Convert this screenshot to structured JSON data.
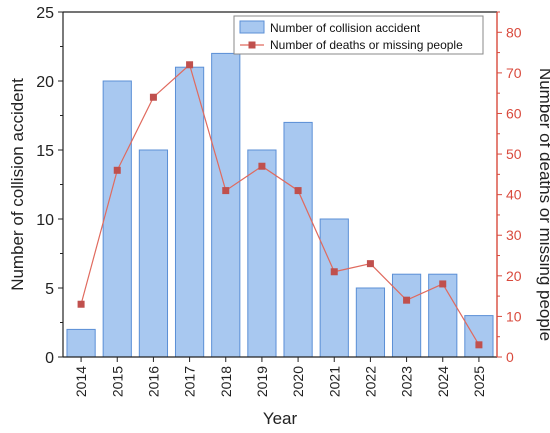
{
  "chart_data": {
    "type": "bar",
    "categories": [
      "2014",
      "2015",
      "2016",
      "2017",
      "2018",
      "2019",
      "2020",
      "2021",
      "2022",
      "2023",
      "2024",
      "2025"
    ],
    "series": [
      {
        "name": "Number of collision accident",
        "type": "bar",
        "axis": "left",
        "values": [
          2,
          20,
          15,
          21,
          22,
          15,
          17,
          10,
          5,
          6,
          6,
          3
        ]
      },
      {
        "name": "Number of deaths or missing people",
        "type": "line",
        "axis": "right",
        "values": [
          13,
          46,
          64,
          72,
          41,
          47,
          41,
          21,
          23,
          14,
          18,
          3
        ]
      }
    ],
    "xlabel": "Year",
    "ylabel": "Number of collision accident",
    "y2label": "Number of deaths or missing people",
    "ylim": [
      0,
      25
    ],
    "y2lim": [
      0,
      85
    ],
    "yticks": [
      "0",
      "5",
      "10",
      "15",
      "20",
      "25"
    ],
    "y2ticks": [
      "0",
      "10",
      "20",
      "30",
      "40",
      "50",
      "60",
      "70",
      "80"
    ],
    "legend": "top-right",
    "grid": false,
    "colors": {
      "bar_fill": "#a8c8f0",
      "bar_stroke": "#5b8fd6",
      "line": "#e06a5e",
      "marker": "#c0504d",
      "right_axis": "#d94a3d",
      "left_axis": "#222222"
    }
  }
}
